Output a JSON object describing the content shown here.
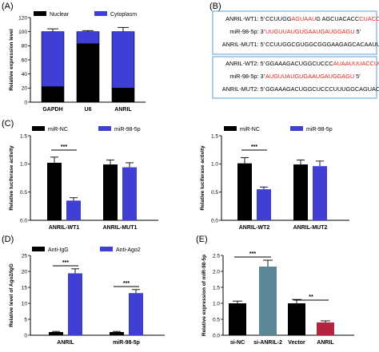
{
  "panel_labels": [
    "(A)",
    "(B)",
    "(C)",
    "(D)",
    "(E)"
  ],
  "colors": {
    "dark": "#000000",
    "blue": "#3f3fd6",
    "teal": "#5c8797",
    "crimson": "#b2243f",
    "red": "#e3211f",
    "frame": "#5aa0d8"
  },
  "sequences": {
    "wt": [
      {
        "label": "ANRIL-WT1: 5'",
        "parts": [
          [
            "CCUUGG",
            false
          ],
          [
            "AG",
            true
          ],
          [
            "UAAU",
            true
          ],
          [
            "G  ",
            false
          ],
          [
            "AG",
            false
          ],
          [
            "CUACACC",
            false
          ],
          [
            "CUACCUCA",
            true
          ],
          [
            " 3'",
            false
          ]
        ]
      },
      {
        "label": "miR-98-5p: 3'",
        "parts": [
          [
            "UUGUUAUGUGAAU",
            true
          ],
          [
            "GAUGGAGU",
            true
          ],
          [
            " 5'",
            false
          ]
        ]
      },
      {
        "label": "ANRIL-MUT1: 5'",
        "parts": [
          [
            "CCUUGGCGUGGCG",
            false
          ],
          [
            "GGAAGAGCACAAUUGAAC",
            false
          ],
          [
            " 3'",
            false
          ]
        ]
      }
    ],
    "mut": [
      {
        "label": "ANRIL-WT2: 5'",
        "parts": [
          [
            "GGAAAGACUGGCUCCC",
            false
          ],
          [
            "AUAAU",
            true
          ],
          [
            "UUACCUCC",
            true
          ],
          [
            " 3'",
            false
          ]
        ]
      },
      {
        "label": "miR-98-5p: 3'",
        "parts": [
          [
            "AUGUUAUGUGAAU",
            true
          ],
          [
            "GAUGGAGU",
            true
          ],
          [
            " 5'",
            false
          ]
        ]
      },
      {
        "label": "ANRIL-MUT2: 5'",
        "parts": [
          [
            "GGAAAGACUGGCUCCCUUU",
            false
          ],
          [
            "GGCAGUAC",
            false
          ],
          [
            " 3'",
            false
          ]
        ]
      }
    ]
  },
  "chart_data": [
    {
      "id": "A",
      "type": "bar",
      "stacked": true,
      "ylabel": "Relative expression level",
      "ylim": [
        0,
        120
      ],
      "yticks": [
        0,
        20,
        40,
        60,
        80,
        100,
        120
      ],
      "categories": [
        "GAPDH",
        "U6",
        "ANRIL"
      ],
      "series": [
        {
          "name": "Nuclear",
          "color": "#000000",
          "values": [
            22,
            83,
            20
          ],
          "errors": [
            2,
            6,
            2
          ]
        },
        {
          "name": "Cytoplasm",
          "color": "#3f3fd6",
          "values": [
            78,
            17,
            80
          ],
          "errors": [
            4,
            1.5,
            6
          ]
        }
      ]
    },
    {
      "id": "C1",
      "type": "bar",
      "ylabel": "Relative luciferase activity",
      "ylim": [
        0,
        1.5
      ],
      "yticks": [
        0.0,
        0.5,
        1.0,
        1.5
      ],
      "categories": [
        "ANRIL-WT1",
        "ANRIL-MUT1"
      ],
      "series": [
        {
          "name": "miR-NC",
          "color": "#000000",
          "values": [
            1.02,
            0.99
          ],
          "errors": [
            0.1,
            0.08
          ]
        },
        {
          "name": "miR-98-5p",
          "color": "#3f3fd6",
          "values": [
            0.35,
            0.94
          ],
          "errors": [
            0.05,
            0.08
          ]
        }
      ],
      "significance": [
        {
          "category": 0,
          "text": "***"
        }
      ]
    },
    {
      "id": "C2",
      "type": "bar",
      "ylabel": "Relative luciferase activity",
      "ylim": [
        0,
        1.5
      ],
      "yticks": [
        0.0,
        0.5,
        1.0,
        1.5
      ],
      "categories": [
        "ANRIL-WT2",
        "ANRIL-MUT2"
      ],
      "series": [
        {
          "name": "miR-NC",
          "color": "#000000",
          "values": [
            1.01,
            0.99
          ],
          "errors": [
            0.1,
            0.08
          ]
        },
        {
          "name": "miR-98-5p",
          "color": "#3f3fd6",
          "values": [
            0.55,
            0.96
          ],
          "errors": [
            0.04,
            0.09
          ]
        }
      ],
      "significance": [
        {
          "category": 0,
          "text": "***"
        }
      ]
    },
    {
      "id": "D",
      "type": "bar",
      "ylabel": "Relative level of Ago2/IgG",
      "ylim": [
        0,
        25
      ],
      "yticks": [
        0,
        5,
        10,
        15,
        20,
        25
      ],
      "categories": [
        "ANRIL",
        "miR-98-5p"
      ],
      "series": [
        {
          "name": "Anti-IgG",
          "color": "#000000",
          "values": [
            1.0,
            1.0
          ],
          "errors": [
            0.2,
            0.2
          ]
        },
        {
          "name": "Anti-Ago2",
          "color": "#3f3fd6",
          "values": [
            19.4,
            13.2
          ],
          "errors": [
            1.4,
            1.1
          ]
        }
      ],
      "significance": [
        {
          "category": 0,
          "text": "***"
        },
        {
          "category": 1,
          "text": "***"
        }
      ]
    },
    {
      "id": "E",
      "type": "bar",
      "ylabel": "Relative expression of miR-98-5p",
      "ylim": [
        0,
        2.5
      ],
      "yticks": [
        0.0,
        0.5,
        1.0,
        1.5,
        2.0,
        2.5
      ],
      "categories": [
        "si-NC",
        "si-ANRIL-2",
        "Vector",
        "ANRIL"
      ],
      "values": [
        1.0,
        2.15,
        1.0,
        0.4
      ],
      "errors": [
        0.07,
        0.2,
        0.12,
        0.05
      ],
      "colors": [
        "#000000",
        "#5c8797",
        "#000000",
        "#b2243f"
      ],
      "significance": [
        {
          "from": 0,
          "to": 1,
          "text": "***"
        },
        {
          "from": 2,
          "to": 3,
          "text": "**"
        }
      ]
    }
  ]
}
